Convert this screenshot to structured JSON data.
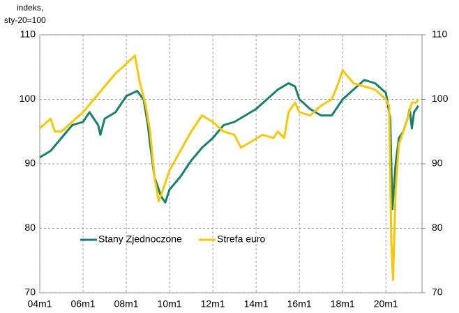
{
  "chart_data": {
    "type": "line",
    "y_label": [
      "indeks,",
      "sty-20=100"
    ],
    "xlim": [
      2004,
      2021.67
    ],
    "xticks": [
      {
        "value": 2004,
        "label": "04m1"
      },
      {
        "value": 2006,
        "label": "06m1"
      },
      {
        "value": 2008,
        "label": "08m1"
      },
      {
        "value": 2010,
        "label": "10m1"
      },
      {
        "value": 2012,
        "label": "12m1"
      },
      {
        "value": 2014,
        "label": "14m1"
      },
      {
        "value": 2016,
        "label": "16m1"
      },
      {
        "value": 2018,
        "label": "18m1"
      },
      {
        "value": 2020,
        "label": "20m1"
      }
    ],
    "ylim": [
      70,
      110
    ],
    "yticks": [
      70,
      80,
      90,
      100,
      110
    ],
    "y2lim": [
      70,
      110
    ],
    "y2ticks": [
      70,
      80,
      90,
      100,
      110
    ],
    "grid": true,
    "series": [
      {
        "name": "Stany Zjednoczone",
        "color": "#17806d",
        "x": [
          2004.0,
          2004.5,
          2005.0,
          2005.5,
          2006.0,
          2006.3,
          2006.7,
          2006.8,
          2007.0,
          2007.5,
          2008.0,
          2008.5,
          2008.8,
          2009.0,
          2009.1,
          2009.3,
          2009.6,
          2009.8,
          2010.0,
          2010.5,
          2011.0,
          2011.5,
          2012.0,
          2012.5,
          2013.0,
          2013.5,
          2014.0,
          2014.5,
          2015.0,
          2015.5,
          2015.8,
          2016.0,
          2016.5,
          2017.0,
          2017.5,
          2018.0,
          2018.5,
          2019.0,
          2019.5,
          2020.0,
          2020.2,
          2020.3,
          2020.45,
          2020.6,
          2020.8,
          2021.0,
          2021.1,
          2021.2,
          2021.3,
          2021.5
        ],
        "values": [
          91,
          92,
          94,
          96,
          96.5,
          98,
          96,
          94.5,
          97,
          98,
          100.5,
          101.3,
          100,
          96,
          93,
          88,
          85,
          84,
          86,
          88,
          90.5,
          92.5,
          94,
          96,
          96.5,
          97.5,
          98.5,
          100,
          101.5,
          102.5,
          102,
          100,
          98.5,
          97.5,
          97.5,
          100,
          101.5,
          103,
          102.5,
          101,
          97,
          83,
          90,
          94,
          95,
          97,
          98.5,
          95.5,
          98,
          99
        ]
      },
      {
        "name": "Strefa euro",
        "color": "#f7c700",
        "x": [
          2004.0,
          2004.5,
          2004.7,
          2005.0,
          2005.5,
          2006.0,
          2006.5,
          2007.0,
          2007.5,
          2008.0,
          2008.4,
          2008.6,
          2008.9,
          2009.1,
          2009.3,
          2009.5,
          2009.7,
          2010.0,
          2010.5,
          2011.0,
          2011.5,
          2012.0,
          2012.5,
          2013.0,
          2013.3,
          2013.8,
          2014.3,
          2014.8,
          2015.0,
          2015.3,
          2015.5,
          2015.8,
          2016.0,
          2016.5,
          2017.0,
          2017.5,
          2017.8,
          2018.0,
          2018.5,
          2019.0,
          2019.5,
          2020.0,
          2020.15,
          2020.25,
          2020.33,
          2020.45,
          2020.6,
          2020.8,
          2021.0,
          2021.2,
          2021.4,
          2021.5
        ],
        "values": [
          95.5,
          97,
          95,
          95,
          96.5,
          98,
          100,
          102,
          104,
          105.5,
          106.8,
          103,
          99,
          95,
          88,
          84.2,
          86,
          89,
          92,
          95,
          97.5,
          96.5,
          95,
          94.5,
          92.5,
          93.5,
          94.5,
          94,
          95,
          94,
          98,
          99.5,
          98,
          97.5,
          99,
          100,
          102.5,
          104.5,
          102.5,
          102,
          101.5,
          100,
          99,
          78,
          72,
          86,
          93,
          95,
          97,
          99.5,
          99.5,
          100
        ]
      }
    ]
  }
}
